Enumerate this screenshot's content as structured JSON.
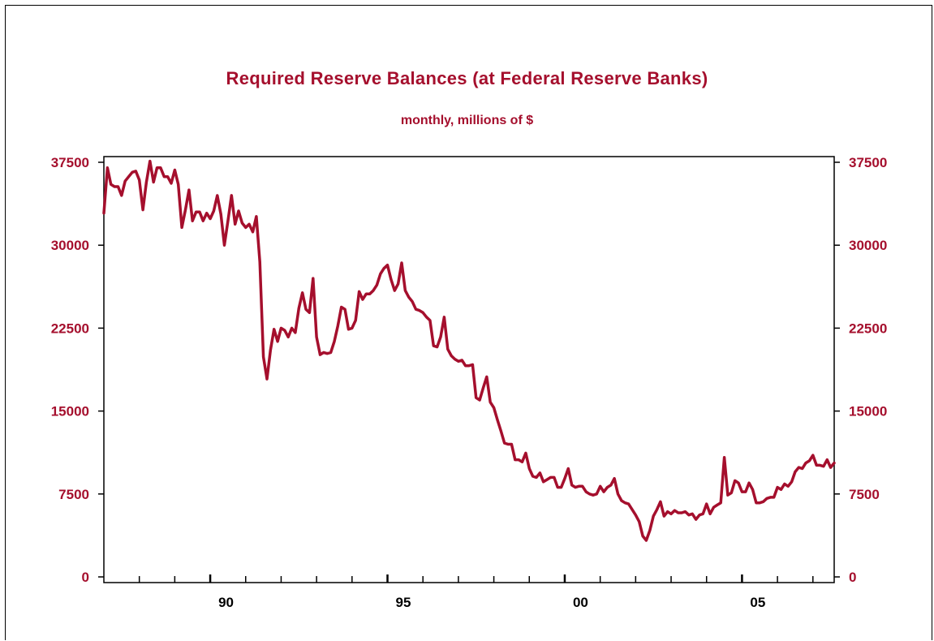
{
  "title": "Required Reserve Balances (at Federal Reserve Banks)",
  "subtitle": "monthly, millions of $",
  "colors": {
    "series": "#a50f2d",
    "text": "#a50f2d",
    "axis": "#000000"
  },
  "chart_data": {
    "type": "line",
    "title": "Required Reserve Balances (at Federal Reserve Banks)",
    "subtitle": "monthly, millions of $",
    "xlabel": "",
    "ylabel": "",
    "xlim": [
      1987.0,
      2007.6
    ],
    "ylim": [
      0,
      38000
    ],
    "yticks": [
      0,
      7500,
      15000,
      22500,
      30000,
      37500
    ],
    "ytick_labels": [
      "0",
      "7500",
      "15000",
      "22500",
      "30000",
      "37500"
    ],
    "xtick_labels": [
      {
        "x": 1990.0,
        "label": "90"
      },
      {
        "x": 1995.0,
        "label": "95"
      },
      {
        "x": 2000.0,
        "label": "00"
      },
      {
        "x": 2005.0,
        "label": "05"
      }
    ],
    "minor_xticks": [
      1988,
      1989,
      1991,
      1992,
      1993,
      1994,
      1996,
      1997,
      1998,
      1999,
      2001,
      2002,
      2003,
      2004,
      2006,
      2007
    ],
    "grid": false,
    "legend": "none",
    "dual_y_axis": true,
    "series": [
      {
        "color": "#a50f2d",
        "points": [
          [
            1987.0,
            32900
          ],
          [
            1987.1,
            37000
          ],
          [
            1987.2,
            35500
          ],
          [
            1987.3,
            35300
          ],
          [
            1987.4,
            35300
          ],
          [
            1987.5,
            34500
          ],
          [
            1987.6,
            35800
          ],
          [
            1987.7,
            36200
          ],
          [
            1987.8,
            36600
          ],
          [
            1987.9,
            36700
          ],
          [
            1988.0,
            35900
          ],
          [
            1988.1,
            33200
          ],
          [
            1988.2,
            35700
          ],
          [
            1988.3,
            37600
          ],
          [
            1988.4,
            35700
          ],
          [
            1988.5,
            37000
          ],
          [
            1988.6,
            37000
          ],
          [
            1988.7,
            36200
          ],
          [
            1988.8,
            36200
          ],
          [
            1988.9,
            35600
          ],
          [
            1989.0,
            36800
          ],
          [
            1989.1,
            35500
          ],
          [
            1989.2,
            31600
          ],
          [
            1989.3,
            33200
          ],
          [
            1989.4,
            35000
          ],
          [
            1989.5,
            32200
          ],
          [
            1989.6,
            33000
          ],
          [
            1989.7,
            33000
          ],
          [
            1989.8,
            32200
          ],
          [
            1989.9,
            32900
          ],
          [
            1990.0,
            32400
          ],
          [
            1990.1,
            33100
          ],
          [
            1990.2,
            34500
          ],
          [
            1990.3,
            32800
          ],
          [
            1990.4,
            30000
          ],
          [
            1990.5,
            32200
          ],
          [
            1990.6,
            34500
          ],
          [
            1990.7,
            31900
          ],
          [
            1990.8,
            33100
          ],
          [
            1990.9,
            32000
          ],
          [
            1991.0,
            31600
          ],
          [
            1991.1,
            31900
          ],
          [
            1991.2,
            31200
          ],
          [
            1991.3,
            32600
          ],
          [
            1991.4,
            28500
          ],
          [
            1991.5,
            19900
          ],
          [
            1991.6,
            17900
          ],
          [
            1991.7,
            20500
          ],
          [
            1991.8,
            22400
          ],
          [
            1991.9,
            21300
          ],
          [
            1992.0,
            22500
          ],
          [
            1992.1,
            22300
          ],
          [
            1992.2,
            21700
          ],
          [
            1992.3,
            22500
          ],
          [
            1992.4,
            22100
          ],
          [
            1992.5,
            24300
          ],
          [
            1992.6,
            25700
          ],
          [
            1992.7,
            24200
          ],
          [
            1992.8,
            23900
          ],
          [
            1992.9,
            27000
          ],
          [
            1993.0,
            21700
          ],
          [
            1993.1,
            20100
          ],
          [
            1993.2,
            20300
          ],
          [
            1993.3,
            20200
          ],
          [
            1993.4,
            20300
          ],
          [
            1993.5,
            21300
          ],
          [
            1993.6,
            22700
          ],
          [
            1993.7,
            24400
          ],
          [
            1993.8,
            24200
          ],
          [
            1993.9,
            22400
          ],
          [
            1994.0,
            22500
          ],
          [
            1994.1,
            23200
          ],
          [
            1994.2,
            25800
          ],
          [
            1994.3,
            25100
          ],
          [
            1994.4,
            25600
          ],
          [
            1994.5,
            25600
          ],
          [
            1994.6,
            25900
          ],
          [
            1994.7,
            26400
          ],
          [
            1994.8,
            27400
          ],
          [
            1994.9,
            27900
          ],
          [
            1995.0,
            28200
          ],
          [
            1995.1,
            26900
          ],
          [
            1995.2,
            25900
          ],
          [
            1995.3,
            26500
          ],
          [
            1995.4,
            28400
          ],
          [
            1995.5,
            25900
          ],
          [
            1995.6,
            25300
          ],
          [
            1995.7,
            24900
          ],
          [
            1995.8,
            24200
          ],
          [
            1995.9,
            24100
          ],
          [
            1996.0,
            23900
          ],
          [
            1996.1,
            23500
          ],
          [
            1996.2,
            23200
          ],
          [
            1996.3,
            20900
          ],
          [
            1996.4,
            20800
          ],
          [
            1996.5,
            21700
          ],
          [
            1996.6,
            23500
          ],
          [
            1996.7,
            20600
          ],
          [
            1996.8,
            20000
          ],
          [
            1996.9,
            19700
          ],
          [
            1997.0,
            19500
          ],
          [
            1997.1,
            19600
          ],
          [
            1997.2,
            19100
          ],
          [
            1997.3,
            19100
          ],
          [
            1997.4,
            19200
          ],
          [
            1997.5,
            16200
          ],
          [
            1997.6,
            16000
          ],
          [
            1997.7,
            17100
          ],
          [
            1997.8,
            18100
          ],
          [
            1997.9,
            15800
          ],
          [
            1998.0,
            15300
          ],
          [
            1998.1,
            14200
          ],
          [
            1998.2,
            13200
          ],
          [
            1998.3,
            12100
          ],
          [
            1998.4,
            12000
          ],
          [
            1998.5,
            12000
          ],
          [
            1998.6,
            10600
          ],
          [
            1998.7,
            10600
          ],
          [
            1998.8,
            10400
          ],
          [
            1998.9,
            11200
          ],
          [
            1999.0,
            9800
          ],
          [
            1999.1,
            9100
          ],
          [
            1999.2,
            9000
          ],
          [
            1999.3,
            9400
          ],
          [
            1999.4,
            8600
          ],
          [
            1999.5,
            8800
          ],
          [
            1999.6,
            9000
          ],
          [
            1999.7,
            9000
          ],
          [
            1999.8,
            8100
          ],
          [
            1999.9,
            8100
          ],
          [
            2000.0,
            8900
          ],
          [
            2000.1,
            9800
          ],
          [
            2000.2,
            8300
          ],
          [
            2000.3,
            8100
          ],
          [
            2000.4,
            8200
          ],
          [
            2000.5,
            8200
          ],
          [
            2000.6,
            7700
          ],
          [
            2000.7,
            7500
          ],
          [
            2000.8,
            7400
          ],
          [
            2000.9,
            7500
          ],
          [
            2001.0,
            8200
          ],
          [
            2001.1,
            7700
          ],
          [
            2001.2,
            8100
          ],
          [
            2001.3,
            8300
          ],
          [
            2001.4,
            8900
          ],
          [
            2001.5,
            7500
          ],
          [
            2001.6,
            6900
          ],
          [
            2001.7,
            6700
          ],
          [
            2001.8,
            6600
          ],
          [
            2001.9,
            6100
          ],
          [
            2002.0,
            5600
          ],
          [
            2002.1,
            5000
          ],
          [
            2002.2,
            3700
          ],
          [
            2002.3,
            3300
          ],
          [
            2002.4,
            4200
          ],
          [
            2002.5,
            5500
          ],
          [
            2002.6,
            6100
          ],
          [
            2002.7,
            6800
          ],
          [
            2002.8,
            5500
          ],
          [
            2002.9,
            5900
          ],
          [
            2003.0,
            5700
          ],
          [
            2003.1,
            6000
          ],
          [
            2003.2,
            5800
          ],
          [
            2003.3,
            5800
          ],
          [
            2003.4,
            5900
          ],
          [
            2003.5,
            5600
          ],
          [
            2003.6,
            5700
          ],
          [
            2003.7,
            5200
          ],
          [
            2003.8,
            5600
          ],
          [
            2003.9,
            5700
          ],
          [
            2004.0,
            6600
          ],
          [
            2004.1,
            5700
          ],
          [
            2004.2,
            6300
          ],
          [
            2004.3,
            6500
          ],
          [
            2004.4,
            6700
          ],
          [
            2004.5,
            10800
          ],
          [
            2004.6,
            7400
          ],
          [
            2004.7,
            7600
          ],
          [
            2004.8,
            8700
          ],
          [
            2004.9,
            8500
          ],
          [
            2005.0,
            7700
          ],
          [
            2005.1,
            7700
          ],
          [
            2005.2,
            8500
          ],
          [
            2005.3,
            7900
          ],
          [
            2005.4,
            6700
          ],
          [
            2005.5,
            6700
          ],
          [
            2005.6,
            6800
          ],
          [
            2005.7,
            7100
          ],
          [
            2005.8,
            7200
          ],
          [
            2005.9,
            7200
          ],
          [
            2006.0,
            8100
          ],
          [
            2006.1,
            7900
          ],
          [
            2006.2,
            8400
          ],
          [
            2006.3,
            8200
          ],
          [
            2006.4,
            8600
          ],
          [
            2006.5,
            9500
          ],
          [
            2006.6,
            9900
          ],
          [
            2006.7,
            9800
          ],
          [
            2006.8,
            10300
          ],
          [
            2006.9,
            10500
          ],
          [
            2007.0,
            11000
          ],
          [
            2007.1,
            10100
          ],
          [
            2007.2,
            10100
          ],
          [
            2007.3,
            10000
          ],
          [
            2007.4,
            10600
          ],
          [
            2007.5,
            9900
          ],
          [
            2007.6,
            10300
          ]
        ]
      }
    ]
  }
}
